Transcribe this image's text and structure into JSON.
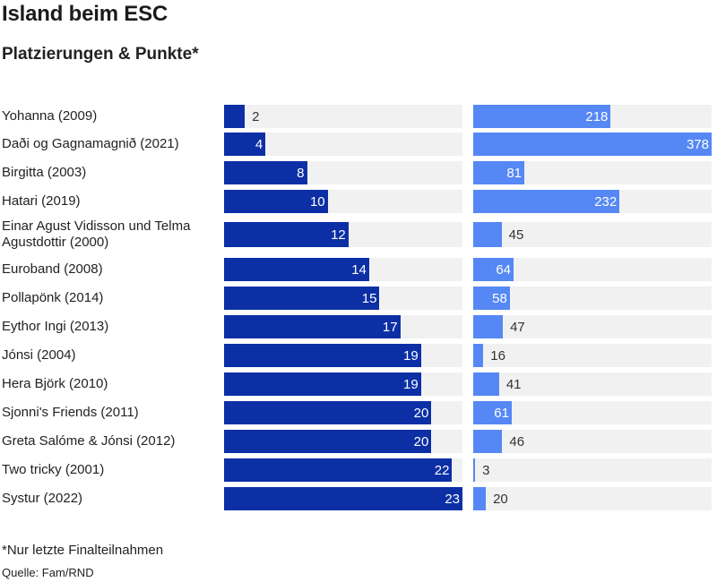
{
  "title": "Island beim ESC",
  "subtitle": "Platzierungen & Punkte*",
  "footnote": "*Nur letzte Finalteilnahmen",
  "source": "Quelle: Fam/RND",
  "colors": {
    "placement_bar": "#0c2fa6",
    "points_bar": "#5588f4",
    "track": "#f1f1f1"
  },
  "chart_data": {
    "type": "bar",
    "orientation": "horizontal",
    "title": "Island beim ESC",
    "subtitle": "Platzierungen & Punkte*",
    "categories": [
      "Yohanna (2009)",
      "Daði og Gagnamagnið (2021)",
      "Birgitta (2003)",
      "Hatari (2019)",
      "Einar Agust Vidisson und Telma Agustdottir (2000)",
      "Euroband (2008)",
      "Pollapönk (2014)",
      "Eythor Ingi (2013)",
      "Jónsi (2004)",
      "Hera Björk (2010)",
      "Sjonni's Friends (2011)",
      "Greta Salóme & Jónsi (2012)",
      "Two tricky (2001)",
      "Systur (2022)"
    ],
    "series": [
      {
        "values": [
          2,
          4,
          8,
          10,
          12,
          14,
          15,
          17,
          19,
          19,
          20,
          20,
          22,
          23
        ],
        "xlim": [
          0,
          23
        ],
        "color": "#0c2fa6"
      },
      {
        "values": [
          218,
          378,
          81,
          232,
          45,
          64,
          58,
          47,
          16,
          41,
          61,
          46,
          3,
          20
        ],
        "xlim": [
          0,
          378
        ],
        "color": "#5588f4"
      }
    ],
    "grid": false,
    "legend": "none"
  }
}
